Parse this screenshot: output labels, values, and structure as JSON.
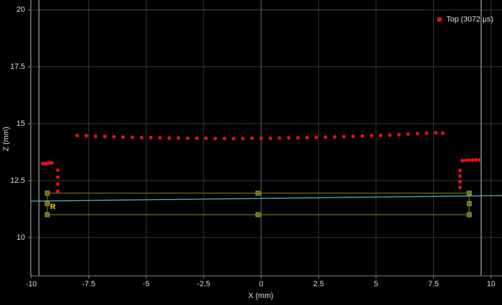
{
  "chart_data": {
    "type": "scatter",
    "xlabel": "X (mm)",
    "ylabel": "Z (mm)",
    "xlim": [
      -10.03,
      10.48
    ],
    "ylim": [
      8.32,
      20.43
    ],
    "xticks": [
      -10,
      -7.5,
      -5,
      -2.5,
      0,
      2.5,
      5,
      7.5,
      10
    ],
    "yticks": [
      10,
      12.5,
      15,
      17.5,
      20
    ],
    "grid": true,
    "legend_position": "top-right",
    "region_label": "R",
    "series": [
      {
        "name": "Top (3072 µs)",
        "color": "#e8110f",
        "x": [
          -9.5,
          -9.4,
          -9.3,
          -9.2,
          -9.1,
          -8.85,
          -8.85,
          -8.85,
          -8.85,
          -8.0,
          -7.6,
          -7.2,
          -6.8,
          -6.4,
          -6.0,
          -5.6,
          -5.2,
          -4.8,
          -4.4,
          -4.0,
          -3.6,
          -3.2,
          -2.8,
          -2.4,
          -2.0,
          -1.6,
          -1.2,
          -0.8,
          -0.4,
          0,
          0.4,
          0.8,
          1.2,
          1.6,
          2.0,
          2.4,
          2.8,
          3.2,
          3.6,
          4.0,
          4.4,
          4.8,
          5.2,
          5.6,
          6.0,
          6.4,
          6.8,
          7.2,
          7.6,
          7.9,
          8.65,
          8.65,
          8.65,
          8.65,
          8.75,
          8.9,
          9.05,
          9.2,
          9.35,
          9.5
        ],
        "values": [
          13.25,
          13.25,
          13.26,
          13.27,
          13.28,
          12.96,
          12.65,
          12.35,
          12.04,
          14.48,
          14.47,
          14.45,
          14.44,
          14.43,
          14.41,
          14.4,
          14.39,
          14.39,
          14.38,
          14.37,
          14.37,
          14.36,
          14.36,
          14.36,
          14.35,
          14.35,
          14.35,
          14.35,
          14.36,
          14.36,
          14.36,
          14.37,
          14.38,
          14.38,
          14.39,
          14.4,
          14.41,
          14.42,
          14.43,
          14.44,
          14.46,
          14.47,
          14.49,
          14.5,
          14.52,
          14.54,
          14.56,
          14.58,
          14.6,
          14.58,
          12.95,
          12.7,
          12.45,
          12.2,
          13.38,
          13.39,
          13.4,
          13.4,
          13.41,
          13.41
        ]
      }
    ]
  }
}
